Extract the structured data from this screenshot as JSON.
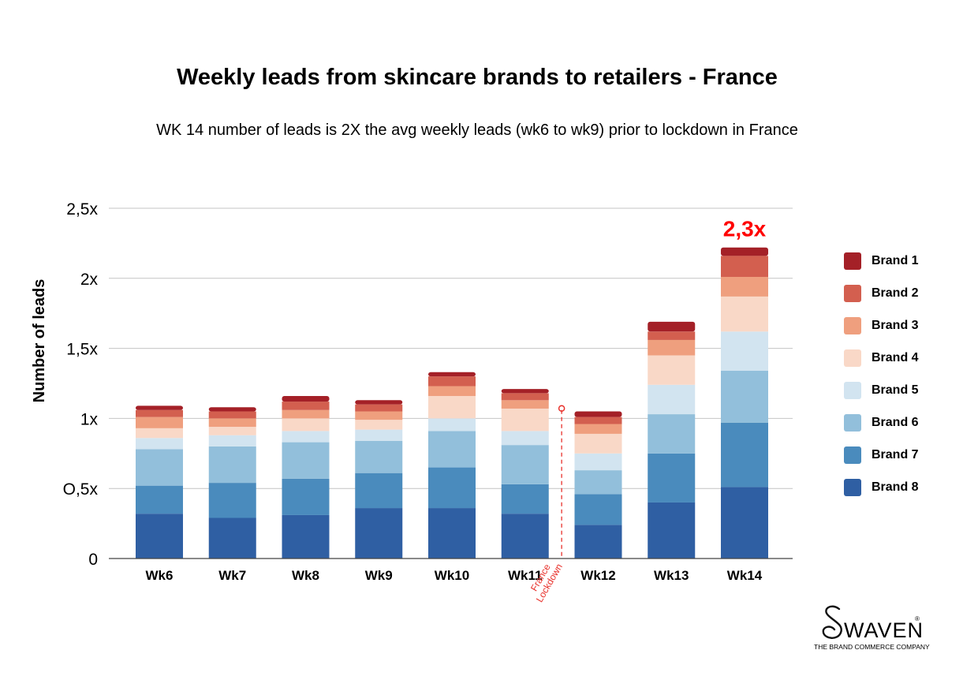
{
  "chart_data": {
    "type": "bar",
    "stacked": true,
    "title": "Weekly leads from skincare brands to retailers - France",
    "subtitle": "WK 14 number of leads is 2X the avg weekly leads (wk6 to wk9) prior to lockdown in France",
    "xlabel": "",
    "ylabel": "Number of leads",
    "ylim": [
      0,
      2.5
    ],
    "yticks": [
      {
        "value": 0,
        "label": "0"
      },
      {
        "value": 0.5,
        "label": "O,5x"
      },
      {
        "value": 1,
        "label": "1x"
      },
      {
        "value": 1.5,
        "label": "1,5x"
      },
      {
        "value": 2,
        "label": "2x"
      },
      {
        "value": 2.5,
        "label": "2,5x"
      }
    ],
    "grid": true,
    "legend_position": "right",
    "categories": [
      "Wk6",
      "Wk7",
      "Wk8",
      "Wk9",
      "Wk10",
      "Wk11",
      "Wk12",
      "Wk13",
      "Wk14"
    ],
    "series": [
      {
        "name": "Brand 8",
        "color": "#2f5fa3",
        "values": [
          0.32,
          0.29,
          0.31,
          0.36,
          0.36,
          0.32,
          0.24,
          0.4,
          0.51
        ]
      },
      {
        "name": "Brand 7",
        "color": "#4a8bbd",
        "values": [
          0.2,
          0.25,
          0.26,
          0.25,
          0.29,
          0.21,
          0.22,
          0.35,
          0.46
        ]
      },
      {
        "name": "Brand 6",
        "color": "#92bfdb",
        "values": [
          0.26,
          0.26,
          0.26,
          0.23,
          0.26,
          0.28,
          0.17,
          0.28,
          0.37
        ]
      },
      {
        "name": "Brand 5",
        "color": "#d2e4f0",
        "values": [
          0.08,
          0.08,
          0.08,
          0.08,
          0.09,
          0.1,
          0.12,
          0.21,
          0.28
        ]
      },
      {
        "name": "Brand 4",
        "color": "#f9d8c7",
        "values": [
          0.07,
          0.06,
          0.09,
          0.07,
          0.16,
          0.16,
          0.14,
          0.21,
          0.25
        ]
      },
      {
        "name": "Brand 3",
        "color": "#ef9f7e",
        "values": [
          0.08,
          0.06,
          0.06,
          0.06,
          0.07,
          0.06,
          0.07,
          0.11,
          0.14
        ]
      },
      {
        "name": "Brand 2",
        "color": "#d35f4f",
        "values": [
          0.05,
          0.05,
          0.06,
          0.05,
          0.07,
          0.05,
          0.05,
          0.06,
          0.15
        ]
      },
      {
        "name": "Brand 1",
        "color": "#a42027",
        "values": [
          0.03,
          0.03,
          0.04,
          0.03,
          0.03,
          0.03,
          0.04,
          0.07,
          0.06
        ]
      }
    ],
    "annotations": [
      {
        "text": "2,3x",
        "category": "Wk14",
        "color": "#ff0000"
      },
      {
        "text": "France Lockdown",
        "between": [
          "Wk11",
          "Wk12"
        ],
        "color": "#e8302a"
      }
    ]
  },
  "branding": {
    "logo_word": "WAVEN",
    "logo_registered": "®",
    "tagline": "THE BRAND COMMERCE COMPANY"
  }
}
